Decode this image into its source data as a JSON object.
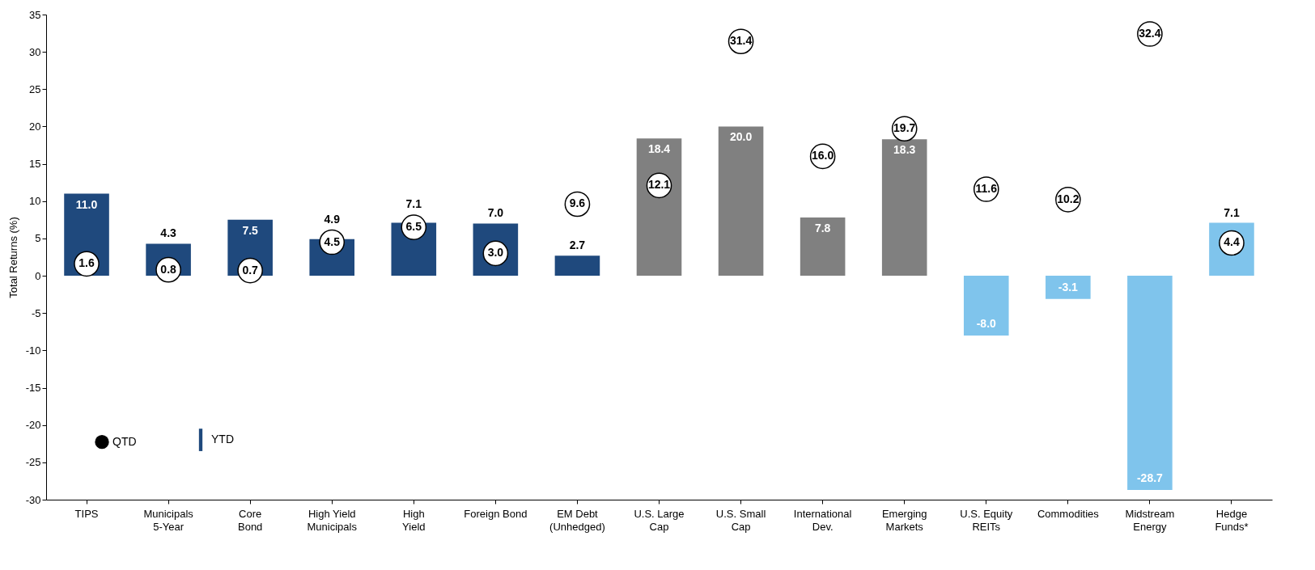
{
  "chart_data": {
    "type": "bar",
    "ylabel": "Total Returns (%)",
    "categories": [
      "TIPS",
      "Municipals\n5-Year",
      "Core\nBond",
      "High Yield\nMunicipals",
      "High\nYield",
      "Foreign Bond",
      "EM Debt\n(Unhedged)",
      "U.S. Large\nCap",
      "U.S. Small\nCap",
      "International\nDev.",
      "Emerging\nMarkets",
      "U.S. Equity\nREITs",
      "Commodities",
      "Midstream\nEnergy",
      "Hedge\nFunds*"
    ],
    "series": [
      {
        "name": "YTD",
        "values": [
          11.0,
          4.3,
          7.5,
          4.9,
          7.1,
          7.0,
          2.7,
          18.4,
          20.0,
          7.8,
          18.3,
          -8.0,
          -3.1,
          -28.7,
          7.1
        ],
        "value_labels": [
          "11.0",
          "4.3",
          "7.5",
          "4.9",
          "7.1",
          "7.0",
          "2.7",
          "18.4",
          "20.0",
          "7.8",
          "18.3",
          "-8.0",
          "-3.1",
          "-28.7",
          "7.1"
        ],
        "colors": [
          "#1f497d",
          "#1f497d",
          "#1f497d",
          "#1f497d",
          "#1f497d",
          "#1f497d",
          "#1f497d",
          "#808080",
          "#808080",
          "#808080",
          "#808080",
          "#7fc4ec",
          "#7fc4ec",
          "#7fc4ec",
          "#7fc4ec"
        ]
      },
      {
        "name": "QTD",
        "type": "scatter",
        "color": "#ffffff",
        "values": [
          1.6,
          0.8,
          0.7,
          4.5,
          6.5,
          3.0,
          9.6,
          12.1,
          31.4,
          16.0,
          19.7,
          11.6,
          10.2,
          32.4,
          4.4
        ],
        "value_labels": [
          "1.6",
          "0.8",
          "0.7",
          "4.5",
          "6.5",
          "3.0",
          "9.6",
          "12.1",
          "31.4",
          "16.0",
          "19.7",
          "11.6",
          "10.2",
          "32.4",
          "4.4"
        ]
      }
    ],
    "ylim": [
      -30,
      35
    ],
    "yticks": [
      -30,
      -25,
      -20,
      -15,
      -10,
      -5,
      0,
      5,
      10,
      15,
      20,
      25,
      30,
      35
    ],
    "legend": "bottom left",
    "marker": "circle",
    "grid": false
  }
}
